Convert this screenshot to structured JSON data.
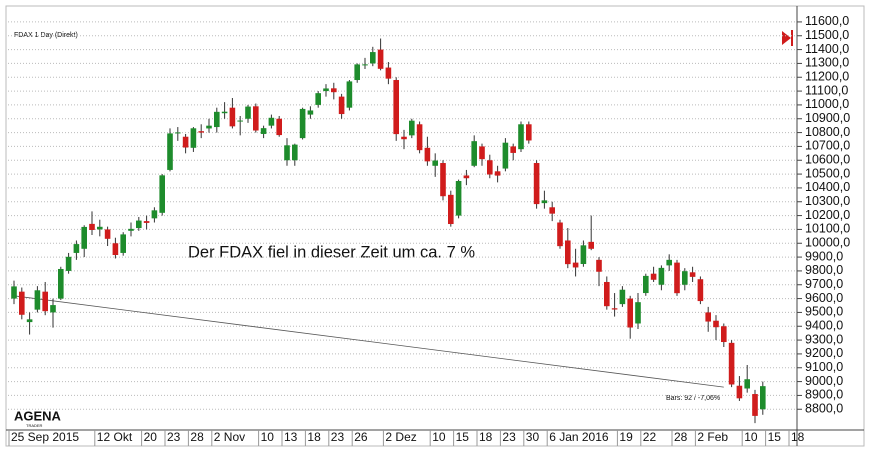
{
  "chart_data": {
    "type": "candlestick",
    "title": "FDAX 1 Day (Direkt)",
    "annotation": "Der FDAX fiel in dieser Zeit um ca. 7 %",
    "trend_line_label": "Bars: 92 / -7,06%",
    "trend_line": [
      9620,
      8960
    ],
    "logo": [
      "AGENA",
      "TRADER"
    ],
    "categories": [
      "25 Sep 2015",
      null,
      null,
      null,
      null,
      null,
      null,
      null,
      null,
      null,
      null,
      "12 Okt",
      null,
      null,
      null,
      null,
      null,
      "20",
      null,
      null,
      "23",
      null,
      null,
      "28",
      null,
      null,
      "2 Nov",
      null,
      null,
      null,
      null,
      null,
      "10",
      null,
      null,
      "13",
      null,
      null,
      "18",
      null,
      null,
      "23",
      null,
      null,
      "26",
      null,
      null,
      null,
      "2 Dez",
      null,
      null,
      null,
      null,
      null,
      "10",
      null,
      null,
      "15",
      null,
      null,
      "18",
      null,
      null,
      "23",
      null,
      null,
      "30",
      null,
      null,
      "6 Jan 2016",
      null,
      null,
      null,
      null,
      null,
      null,
      null,
      null,
      "19",
      null,
      null,
      "22",
      null,
      null,
      null,
      "28",
      null,
      null,
      "2 Feb",
      null,
      null,
      null,
      null,
      null,
      "10",
      null,
      null,
      "15",
      null,
      null,
      "18"
    ],
    "open": [
      9600,
      9650,
      9430,
      9520,
      9650,
      9500,
      9600,
      9800,
      9930,
      9960,
      10140,
      10100,
      10100,
      10000,
      9930,
      10090,
      10110,
      10160,
      10180,
      10220,
      10530,
      10800,
      10770,
      10690,
      10810,
      10830,
      10840,
      10940,
      10980,
      10880,
      10900,
      10990,
      10790,
      10850,
      10900,
      10600,
      10600,
      10760,
      10930,
      11000,
      11100,
      11120,
      11060,
      10980,
      11180,
      11290,
      11300,
      11400,
      11270,
      11180,
      10770,
      10780,
      10860,
      10690,
      10560,
      10580,
      10350,
      10200,
      10490,
      10560,
      10700,
      10600,
      10520,
      10540,
      10700,
      10680,
      10860,
      10580,
      10290,
      10260,
      10150,
      10020,
      9860,
      9850,
      10010,
      9880,
      9720,
      9530,
      9560,
      9600,
      9420,
      9640,
      9780,
      9700,
      9840,
      9860,
      9700,
      9790,
      9740,
      9500,
      9440,
      9400,
      9280,
      8970,
      8950,
      8910,
      8800,
      null,
      null,
      null,
      null
    ],
    "high": [
      9730,
      9680,
      9500,
      9690,
      9720,
      9600,
      9830,
      9930,
      10020,
      10130,
      10230,
      10170,
      10120,
      10040,
      10080,
      10150,
      10190,
      10200,
      10260,
      10500,
      10830,
      10840,
      10790,
      10840,
      10860,
      10900,
      10980,
      11020,
      11050,
      10920,
      11000,
      11010,
      10850,
      10930,
      10920,
      10760,
      10720,
      10980,
      10990,
      11100,
      11150,
      11160,
      11080,
      11180,
      11300,
      11340,
      11420,
      11480,
      11310,
      11200,
      10820,
      10900,
      10880,
      10770,
      10650,
      10600,
      10380,
      10460,
      10530,
      10780,
      10720,
      10640,
      10560,
      10760,
      10720,
      10880,
      10880,
      10600,
      10380,
      10300,
      10170,
      10110,
      9960,
      10020,
      10200,
      9900,
      9760,
      9640,
      9690,
      9620,
      9640,
      9780,
      9830,
      9840,
      9920,
      9880,
      9820,
      9830,
      9760,
      9540,
      9480,
      9420,
      9300,
      9040,
      9120,
      8940,
      9000,
      null,
      null,
      null,
      null
    ],
    "low": [
      9560,
      9450,
      9340,
      9500,
      9480,
      9390,
      9590,
      9780,
      9880,
      9900,
      10060,
      10050,
      9980,
      9890,
      9910,
      10050,
      10090,
      10100,
      10150,
      10200,
      10520,
      10740,
      10650,
      10660,
      10760,
      10800,
      10800,
      10900,
      10830,
      10780,
      10870,
      10800,
      10760,
      10830,
      10770,
      10560,
      10560,
      10750,
      10900,
      10980,
      11060,
      11040,
      10900,
      10960,
      11160,
      11260,
      11280,
      11250,
      11150,
      10740,
      10680,
      10760,
      10650,
      10560,
      10480,
      10310,
      10120,
      10180,
      10420,
      10550,
      10560,
      10470,
      10440,
      10520,
      10600,
      10660,
      10720,
      10250,
      10250,
      10160,
      9960,
      9820,
      9760,
      9830,
      9950,
      9690,
      9520,
      9470,
      9540,
      9310,
      9380,
      9620,
      9720,
      9660,
      9800,
      9620,
      9660,
      9720,
      9560,
      9360,
      9300,
      9250,
      8960,
      8860,
      8920,
      8700,
      8760,
      null,
      null,
      null,
      null
    ],
    "close": [
      9688,
      9483,
      9450,
      9660,
      9509,
      9553,
      9814,
      9902,
      9994,
      10118,
      10096,
      10119,
      10032,
      9915,
      10064,
      10104,
      10164,
      10147,
      10238,
      10491,
      10794,
      10801,
      10692,
      10831,
      10800,
      10850,
      10950,
      10951,
      10845,
      10887,
      10988,
      10815,
      10832,
      10907,
      10782,
      10708,
      10713,
      10971,
      10960,
      11085,
      11119,
      11092,
      10934,
      11170,
      11293,
      11293,
      11382,
      11261,
      11190,
      10789,
      10752,
      10886,
      10673,
      10592,
      10598,
      10340,
      10139,
      10450,
      10470,
      10738,
      10608,
      10497,
      10489,
      10727,
      10653,
      10860,
      10743,
      10283,
      10310,
      10214,
      9979,
      9849,
      9825,
      9985,
      9960,
      9794,
      9545,
      9521,
      9664,
      9391,
      9574,
      9764,
      9736,
      9822,
      9880,
      9639,
      9798,
      9757,
      9582,
      9434,
      9393,
      9286,
      8979,
      8879,
      9017,
      8752,
      8967,
      null,
      null,
      null,
      null
    ],
    "up_color": "#1e8c2c",
    "down_color": "#d01c1c",
    "ylim": [
      8650,
      11650
    ],
    "yticks": [
      {
        "value": 8800,
        "label": "8800,0"
      },
      {
        "value": 8900,
        "label": "8900,0"
      },
      {
        "value": 9000,
        "label": "9000,0"
      },
      {
        "value": 9100,
        "label": "9100,0"
      },
      {
        "value": 9200,
        "label": "9200,0"
      },
      {
        "value": 9300,
        "label": "9300,0"
      },
      {
        "value": 9400,
        "label": "9400,0"
      },
      {
        "value": 9500,
        "label": "9500,0"
      },
      {
        "value": 9600,
        "label": "9600,0"
      },
      {
        "value": 9700,
        "label": "9700,0"
      },
      {
        "value": 9800,
        "label": "9800,0"
      },
      {
        "value": 9900,
        "label": "9900,0"
      },
      {
        "value": 10000,
        "label": "10000,0"
      },
      {
        "value": 10100,
        "label": "10100,0"
      },
      {
        "value": 10200,
        "label": "10200,0"
      },
      {
        "value": 10300,
        "label": "10300,0"
      },
      {
        "value": 10400,
        "label": "10400,0"
      },
      {
        "value": 10500,
        "label": "10500,0"
      },
      {
        "value": 10600,
        "label": "10600,0"
      },
      {
        "value": 10700,
        "label": "10700,0"
      },
      {
        "value": 10800,
        "label": "10800,0"
      },
      {
        "value": 10900,
        "label": "10900,0"
      },
      {
        "value": 11000,
        "label": "11000,0"
      },
      {
        "value": 11100,
        "label": "11100,0"
      },
      {
        "value": 11200,
        "label": "11200,0"
      },
      {
        "value": 11300,
        "label": "11300,0"
      },
      {
        "value": 11400,
        "label": "11400,0"
      },
      {
        "value": 11500,
        "label": "11500,0"
      },
      {
        "value": 11600,
        "label": "11600,0"
      }
    ],
    "grid": true
  }
}
